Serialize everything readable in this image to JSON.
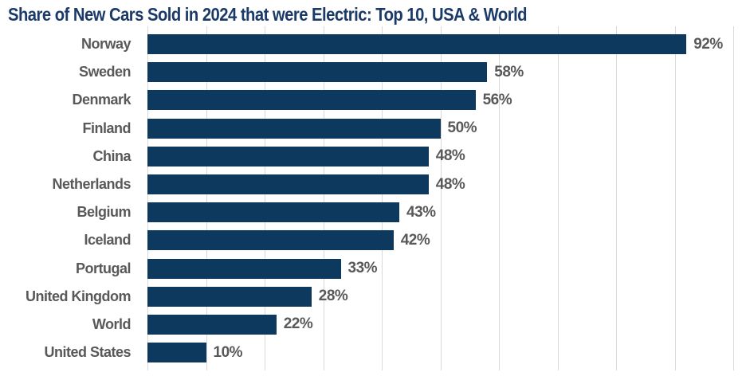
{
  "chart_data": {
    "type": "bar",
    "orientation": "horizontal",
    "title": "Share of New Cars Sold in 2024 that were Electric: Top 10, USA & World",
    "categories": [
      "Norway",
      "Sweden",
      "Denmark",
      "Finland",
      "China",
      "Netherlands",
      "Belgium",
      "Iceland",
      "Portugal",
      "United Kingdom",
      "World",
      "United States"
    ],
    "values": [
      92,
      58,
      56,
      50,
      48,
      48,
      43,
      42,
      33,
      28,
      22,
      10
    ],
    "value_labels": [
      "92%",
      "58%",
      "56%",
      "50%",
      "48%",
      "48%",
      "43%",
      "42%",
      "33%",
      "28%",
      "22%",
      "10%"
    ],
    "xlabel": "",
    "ylabel": "",
    "xlim": [
      0,
      100
    ],
    "xticks": [
      0,
      10,
      20,
      30,
      40,
      50,
      60,
      70,
      80,
      90,
      100
    ],
    "grid": "vertical",
    "legend": "none",
    "data_labels": "outside-end",
    "colors": {
      "bar": "#0E395F",
      "title": "#1B3A68",
      "category_label": "#595959",
      "value_label": "#595959",
      "gridline": "#D9D9D9",
      "background": "#FFFFFF"
    }
  }
}
